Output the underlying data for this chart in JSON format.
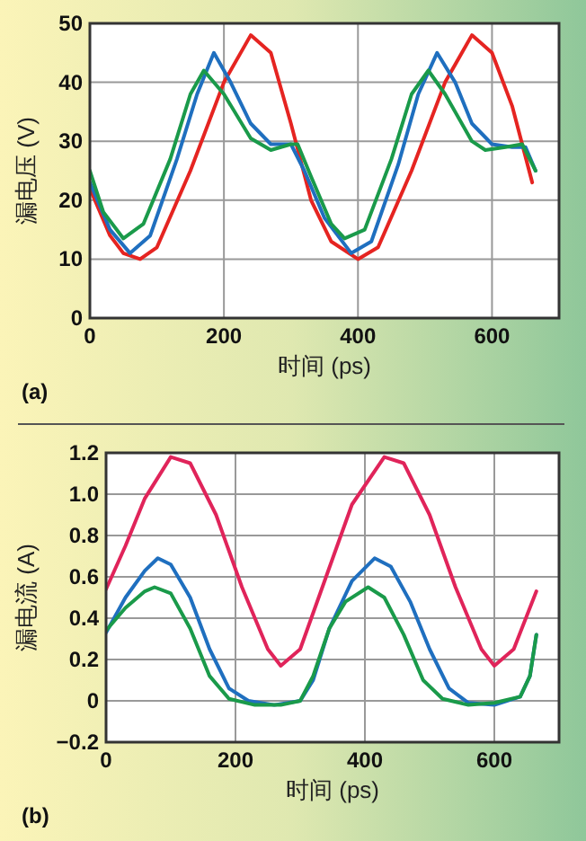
{
  "chart_data": [
    {
      "type": "line",
      "xlabel": "时间 (ps)",
      "ylabel": "漏电压 (V)",
      "annotations": [
        "(a)"
      ],
      "xlim": [
        0,
        700
      ],
      "ylim": [
        0,
        50
      ],
      "xticks": [
        0,
        200,
        400,
        600
      ],
      "yticks": [
        0,
        10,
        20,
        30,
        40,
        50
      ],
      "grid": true,
      "marker": "none",
      "line_style": "solid",
      "series": [
        {
          "color": "#e52421",
          "x": [
            0,
            30,
            50,
            75,
            100,
            150,
            200,
            240,
            270,
            300,
            330,
            360,
            400,
            430,
            480,
            530,
            570,
            600,
            630,
            660
          ],
          "values": [
            22,
            14,
            11,
            10,
            12,
            25,
            40,
            48,
            45,
            33,
            20,
            13,
            10,
            12,
            25,
            40,
            48,
            45,
            36,
            23
          ]
        },
        {
          "color": "#1f6fbf",
          "x": [
            0,
            30,
            60,
            90,
            130,
            160,
            185,
            210,
            240,
            270,
            300,
            320,
            350,
            390,
            420,
            460,
            490,
            518,
            545,
            570,
            600,
            630,
            650,
            665
          ],
          "values": [
            23,
            15,
            11,
            14,
            27,
            38,
            45,
            40,
            33,
            29.5,
            29.5,
            25,
            17,
            11,
            13,
            26,
            38,
            45,
            40,
            33,
            29.5,
            29,
            29,
            25
          ]
        },
        {
          "color": "#1a9a4a",
          "x": [
            0,
            20,
            50,
            80,
            120,
            150,
            170,
            200,
            240,
            270,
            300,
            310,
            330,
            360,
            380,
            410,
            450,
            480,
            505,
            530,
            570,
            590,
            620,
            645,
            665
          ],
          "values": [
            25,
            18,
            13.5,
            16,
            27,
            38,
            42,
            38,
            30.5,
            28.5,
            29.5,
            29.5,
            24,
            16,
            13.5,
            15,
            27,
            38,
            42,
            38,
            30,
            28.5,
            29,
            29.5,
            25
          ]
        }
      ]
    },
    {
      "type": "line",
      "xlabel": "时间 (ps)",
      "ylabel": "漏电流 (A)",
      "annotations": [
        "(b)"
      ],
      "xlim": [
        0,
        700
      ],
      "ylim": [
        -0.2,
        1.2
      ],
      "xticks": [
        0,
        200,
        400,
        600
      ],
      "yticks": [
        {
          "value": -0.2,
          "label": "−0.2"
        },
        0,
        0.2,
        0.4,
        0.6,
        0.8,
        {
          "value": 1,
          "label": "1.0"
        },
        1.2
      ],
      "grid": true,
      "marker": "none",
      "line_style": "solid",
      "series": [
        {
          "color": "#e0245a",
          "x": [
            0,
            30,
            60,
            100,
            130,
            170,
            210,
            250,
            270,
            300,
            340,
            380,
            430,
            460,
            500,
            540,
            580,
            600,
            630,
            665
          ],
          "values": [
            0.54,
            0.75,
            0.98,
            1.18,
            1.15,
            0.9,
            0.55,
            0.25,
            0.17,
            0.25,
            0.6,
            0.95,
            1.18,
            1.15,
            0.9,
            0.55,
            0.25,
            0.17,
            0.25,
            0.53
          ]
        },
        {
          "color": "#1f6fbf",
          "x": [
            0,
            30,
            60,
            80,
            100,
            130,
            160,
            190,
            220,
            260,
            300,
            320,
            345,
            380,
            415,
            440,
            470,
            500,
            530,
            560,
            600,
            640,
            655,
            665
          ],
          "values": [
            0.33,
            0.5,
            0.63,
            0.69,
            0.66,
            0.5,
            0.25,
            0.06,
            0,
            -0.02,
            0,
            0.1,
            0.35,
            0.58,
            0.69,
            0.65,
            0.48,
            0.25,
            0.06,
            -0.01,
            -0.02,
            0.02,
            0.12,
            0.32
          ]
        },
        {
          "color": "#1a9a4a",
          "x": [
            0,
            30,
            60,
            75,
            100,
            130,
            160,
            190,
            230,
            270,
            300,
            320,
            345,
            370,
            405,
            430,
            460,
            490,
            520,
            560,
            600,
            640,
            655,
            665
          ],
          "values": [
            0.34,
            0.45,
            0.53,
            0.55,
            0.52,
            0.35,
            0.12,
            0.01,
            -0.02,
            -0.02,
            0,
            0.12,
            0.35,
            0.48,
            0.55,
            0.5,
            0.32,
            0.1,
            0.01,
            -0.02,
            -0.01,
            0.02,
            0.12,
            0.32
          ]
        }
      ]
    }
  ]
}
